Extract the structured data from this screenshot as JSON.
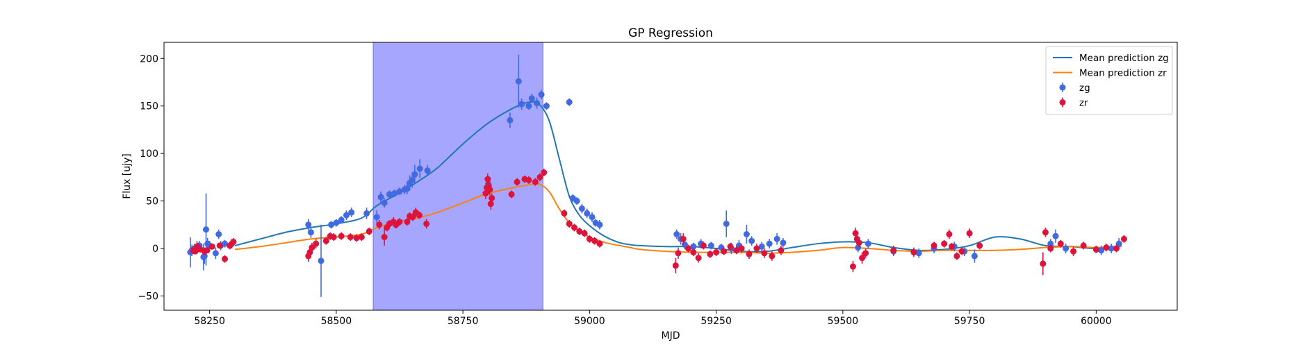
{
  "chart_data": {
    "type": "scatter",
    "title": "GP Regression",
    "xlabel": "MJD",
    "ylabel": "Flux [ujy]",
    "xlim": [
      58160,
      60160
    ],
    "ylim": [
      -65,
      217
    ],
    "xticks": [
      58250,
      58500,
      58750,
      59000,
      59250,
      59500,
      59750,
      60000
    ],
    "yticks": [
      -50,
      0,
      50,
      100,
      150,
      200
    ],
    "grid": false,
    "legend_position": "top-right",
    "shaded_region": {
      "x_start": 58573,
      "x_end": 58908,
      "color": "#a6a6ff"
    },
    "colors": {
      "mean_zg": "#1f77b4",
      "mean_zr": "#ff7f0e",
      "zg": "#4169e1",
      "zr": "#dc143c"
    },
    "series": [
      {
        "name": "Mean prediction zg",
        "kind": "line",
        "x": [
          58300,
          58350,
          58400,
          58450,
          58500,
          58550,
          58580,
          58620,
          58660,
          58700,
          58750,
          58800,
          58850,
          58880,
          58900,
          58920,
          58940,
          58960,
          58980,
          59000,
          59020,
          59040,
          59060,
          59080,
          59100,
          59150,
          59200,
          59250,
          59300,
          59350,
          59400,
          59450,
          59500,
          59550,
          59600,
          59650,
          59700,
          59750,
          59800,
          59850,
          59900,
          59950,
          60000,
          60050
        ],
        "y": [
          3,
          10,
          17,
          22,
          26,
          32,
          45,
          57,
          70,
          85,
          110,
          132,
          148,
          154,
          152,
          135,
          95,
          55,
          35,
          24,
          16,
          10,
          6,
          4,
          3,
          2,
          2,
          0,
          -3,
          -3,
          1,
          5,
          7,
          6,
          1,
          -2,
          -1,
          3,
          12,
          10,
          3,
          2,
          0,
          3
        ]
      },
      {
        "name": "Mean prediction zr",
        "kind": "line",
        "x": [
          58300,
          58350,
          58400,
          58450,
          58500,
          58550,
          58580,
          58620,
          58660,
          58700,
          58750,
          58800,
          58850,
          58880,
          58900,
          58920,
          58940,
          58960,
          58980,
          59000,
          59020,
          59040,
          59060,
          59080,
          59100,
          59150,
          59200,
          59250,
          59300,
          59350,
          59400,
          59450,
          59500,
          59550,
          59600,
          59650,
          59700,
          59750,
          59800,
          59850,
          59900,
          59950,
          60000,
          60050
        ],
        "y": [
          -1,
          2,
          6,
          10,
          12,
          15,
          22,
          28,
          32,
          38,
          48,
          58,
          64,
          67,
          68,
          60,
          42,
          27,
          18,
          12,
          8,
          5,
          3,
          1,
          -1,
          -3,
          -4,
          -4,
          -4,
          -5,
          -4,
          -2,
          1,
          0,
          -2,
          -3,
          -2,
          -2,
          -2,
          -1,
          1,
          2,
          1,
          2
        ]
      },
      {
        "name": "zg",
        "kind": "errorbar",
        "x": [
          58212,
          58215,
          58220,
          58225,
          58230,
          58238,
          58240,
          58243,
          58246,
          58250,
          58262,
          58268,
          58272,
          58280,
          58294,
          58445,
          58450,
          58470,
          58490,
          58500,
          58510,
          58520,
          58530,
          58560,
          58580,
          58588,
          58595,
          58605,
          58615,
          58625,
          58635,
          58640,
          58645,
          58650,
          58655,
          58665,
          58680,
          58800,
          58843,
          58860,
          58866,
          58880,
          58886,
          58896,
          58905,
          58915,
          58960,
          58967,
          58975,
          58985,
          58995,
          59005,
          59012,
          59020,
          59172,
          59180,
          59188,
          59205,
          59220,
          59240,
          59260,
          59270,
          59280,
          59295,
          59310,
          59320,
          59340,
          59355,
          59370,
          59382,
          59530,
          59550,
          59600,
          59650,
          59680,
          59720,
          59740,
          59760,
          59910,
          59920,
          59940,
          60010,
          60030,
          60045
        ],
        "y": [
          -4,
          -2,
          0,
          2,
          3,
          -9,
          -8,
          20,
          5,
          3,
          -5,
          15,
          3,
          5,
          5,
          25,
          17,
          -13,
          25,
          27,
          30,
          35,
          38,
          37,
          33,
          54,
          48,
          57,
          58,
          60,
          62,
          63,
          69,
          72,
          78,
          84,
          82,
          68,
          135,
          176,
          152,
          150,
          158,
          153,
          162,
          150,
          154,
          53,
          50,
          42,
          37,
          33,
          27,
          25,
          15,
          10,
          4,
          2,
          5,
          3,
          1,
          26,
          0,
          3,
          15,
          8,
          2,
          5,
          10,
          6,
          1,
          5,
          -3,
          -5,
          0,
          2,
          -3,
          -8,
          5,
          13,
          0,
          -2,
          0,
          5
        ],
        "err": [
          16,
          6,
          5,
          6,
          5,
          14,
          8,
          38,
          6,
          5,
          6,
          5,
          5,
          4,
          5,
          6,
          6,
          38,
          4,
          4,
          4,
          5,
          5,
          6,
          7,
          6,
          5,
          4,
          4,
          4,
          5,
          6,
          8,
          8,
          10,
          10,
          6,
          6,
          8,
          28,
          6,
          4,
          5,
          6,
          5,
          4,
          4,
          4,
          4,
          5,
          5,
          5,
          4,
          5,
          5,
          6,
          5,
          4,
          5,
          4,
          4,
          14,
          6,
          6,
          10,
          5,
          5,
          5,
          6,
          5,
          5,
          5,
          5,
          5,
          5,
          5,
          5,
          7,
          5,
          7,
          5,
          5,
          5,
          6
        ]
      },
      {
        "name": "zr",
        "kind": "errorbar",
        "x": [
          58218,
          58222,
          58226,
          58232,
          58240,
          58245,
          58255,
          58270,
          58280,
          58290,
          58297,
          58445,
          58448,
          58452,
          58460,
          58480,
          58488,
          58495,
          58510,
          58528,
          58540,
          58550,
          58565,
          58585,
          58595,
          58600,
          58605,
          58613,
          58618,
          58625,
          58640,
          58645,
          58651,
          58657,
          58664,
          58678,
          58795,
          58797,
          58799,
          58801,
          58803,
          58805,
          58807,
          58846,
          58857,
          58872,
          58880,
          58893,
          58902,
          58910,
          58950,
          58960,
          58970,
          58980,
          58990,
          59000,
          59010,
          59020,
          59170,
          59175,
          59185,
          59195,
          59205,
          59215,
          59225,
          59238,
          59250,
          59265,
          59278,
          59290,
          59300,
          59315,
          59330,
          59345,
          59360,
          59378,
          59520,
          59525,
          59528,
          59532,
          59538,
          59545,
          59600,
          59640,
          59680,
          59700,
          59710,
          59715,
          59725,
          59735,
          59750,
          59770,
          59895,
          59900,
          59910,
          59930,
          59955,
          59975,
          60000,
          60020,
          60040,
          60055
        ],
        "y": [
          -2,
          -3,
          2,
          -1,
          -3,
          -2,
          2,
          3,
          -11,
          3,
          7,
          -8,
          -4,
          1,
          5,
          8,
          13,
          12,
          13,
          12,
          11,
          12,
          18,
          25,
          12,
          22,
          26,
          28,
          25,
          28,
          28,
          34,
          33,
          38,
          35,
          26,
          58,
          64,
          73,
          66,
          62,
          47,
          53,
          57,
          70,
          73,
          72,
          70,
          75,
          80,
          37,
          26,
          22,
          18,
          16,
          10,
          8,
          5,
          -18,
          -5,
          10,
          0,
          -4,
          -10,
          3,
          -6,
          -4,
          -3,
          2,
          -2,
          0,
          -6,
          0,
          -5,
          -8,
          -2,
          -19,
          16,
          10,
          6,
          -10,
          -5,
          -2,
          -4,
          3,
          5,
          15,
          2,
          -8,
          -3,
          16,
          3,
          -16,
          17,
          0,
          5,
          -3,
          3,
          -1,
          1,
          0,
          10
        ],
        "err": [
          4,
          3,
          4,
          3,
          4,
          3,
          3,
          3,
          4,
          4,
          4,
          6,
          5,
          5,
          5,
          4,
          4,
          4,
          4,
          4,
          4,
          4,
          4,
          5,
          9,
          4,
          4,
          5,
          4,
          4,
          4,
          4,
          4,
          5,
          4,
          5,
          6,
          6,
          6,
          8,
          6,
          6,
          5,
          4,
          4,
          4,
          4,
          4,
          4,
          4,
          4,
          4,
          4,
          4,
          4,
          4,
          4,
          4,
          8,
          6,
          6,
          4,
          4,
          5,
          4,
          4,
          4,
          4,
          4,
          4,
          5,
          5,
          5,
          5,
          5,
          5,
          6,
          6,
          5,
          5,
          6,
          5,
          5,
          5,
          4,
          4,
          5,
          4,
          4,
          4,
          5,
          4,
          12,
          5,
          4,
          4,
          5,
          4,
          4,
          4,
          4,
          4
        ]
      }
    ],
    "legend": [
      {
        "label": "Mean prediction zg",
        "marker": "line",
        "color_key": "mean_zg"
      },
      {
        "label": "Mean prediction zr",
        "marker": "line",
        "color_key": "mean_zr"
      },
      {
        "label": "zg",
        "marker": "errorbar",
        "color_key": "zg"
      },
      {
        "label": "zr",
        "marker": "errorbar",
        "color_key": "zr"
      }
    ]
  }
}
